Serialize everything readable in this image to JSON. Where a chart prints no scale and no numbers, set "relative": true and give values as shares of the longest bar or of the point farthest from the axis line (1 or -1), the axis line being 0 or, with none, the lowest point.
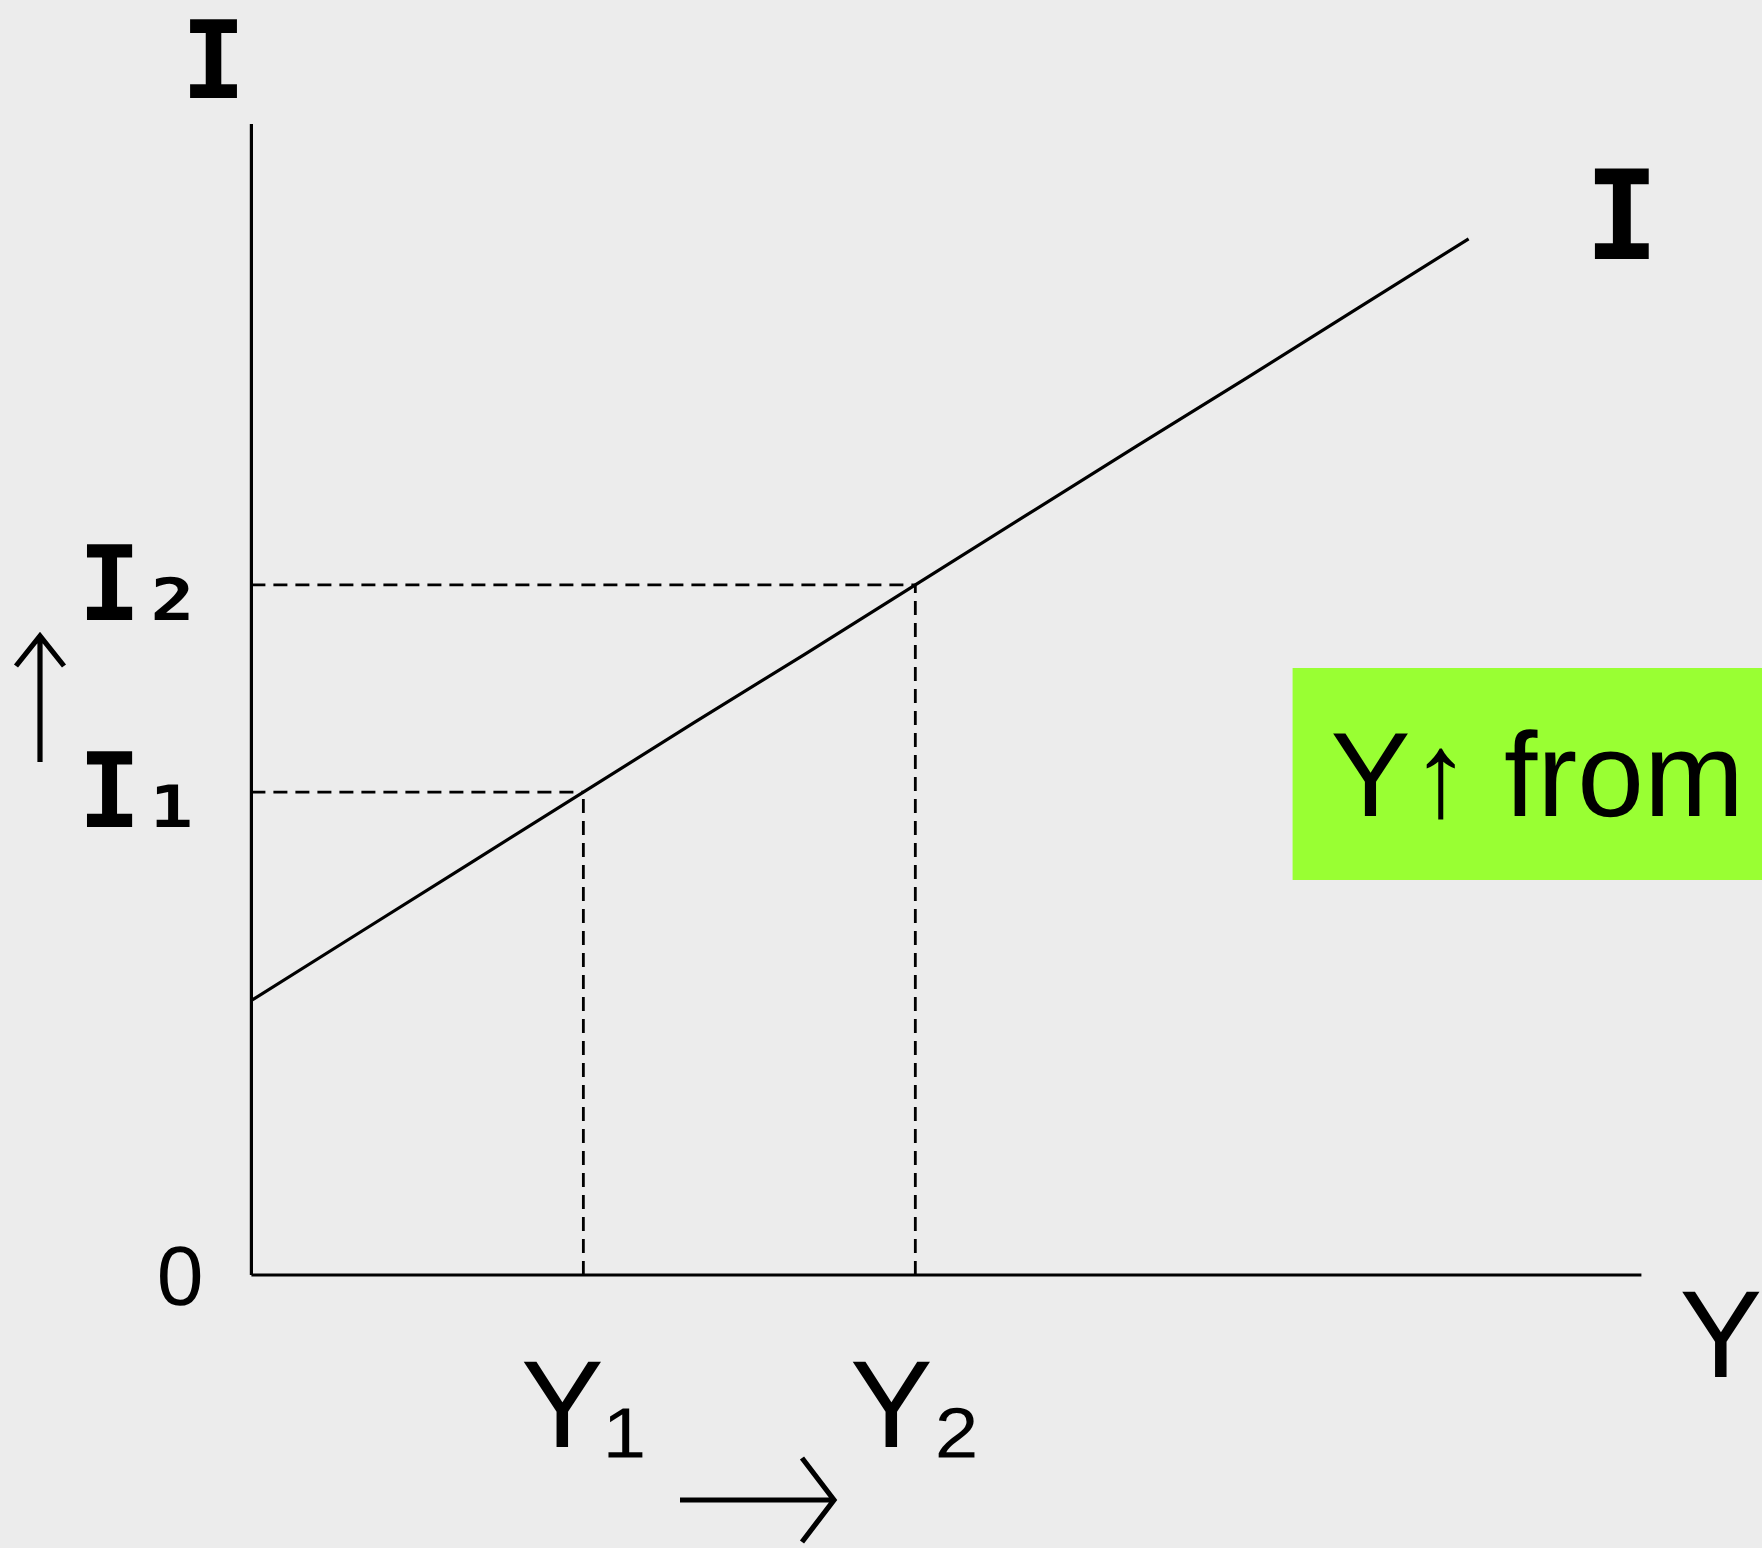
{
  "chart_data": {
    "type": "line",
    "relative": true,
    "ylabel": "I",
    "xlabel": "Y",
    "categories": [
      null,
      null,
      null,
      "Y₁",
      null,
      null,
      "Y₂",
      null,
      null,
      null,
      null,
      null
    ],
    "series": [
      {
        "name": "I",
        "color": "#000000",
        "values": [
          0.265,
          0.332,
          0.399,
          0.466,
          0.533,
          0.599,
          0.666,
          0.733,
          0.8,
          0.866,
          0.933,
          1
        ]
      }
    ],
    "ref_lines": [
      {
        "axis": "y",
        "value": 0.466,
        "label": "I₁",
        "color": "#000000",
        "line_style": "dashed"
      },
      {
        "axis": "y",
        "value": 0.666,
        "label": "I₂",
        "color": "#000000",
        "line_style": "dashed"
      },
      {
        "axis": "x",
        "value": "Y₁",
        "color": "#000000",
        "line_style": "dashed"
      },
      {
        "axis": "x",
        "value": "Y₂",
        "color": "#000000",
        "line_style": "dashed"
      }
    ],
    "annotations": [
      "0",
      "Y↑ from"
    ],
    "line_style": "solid"
  }
}
